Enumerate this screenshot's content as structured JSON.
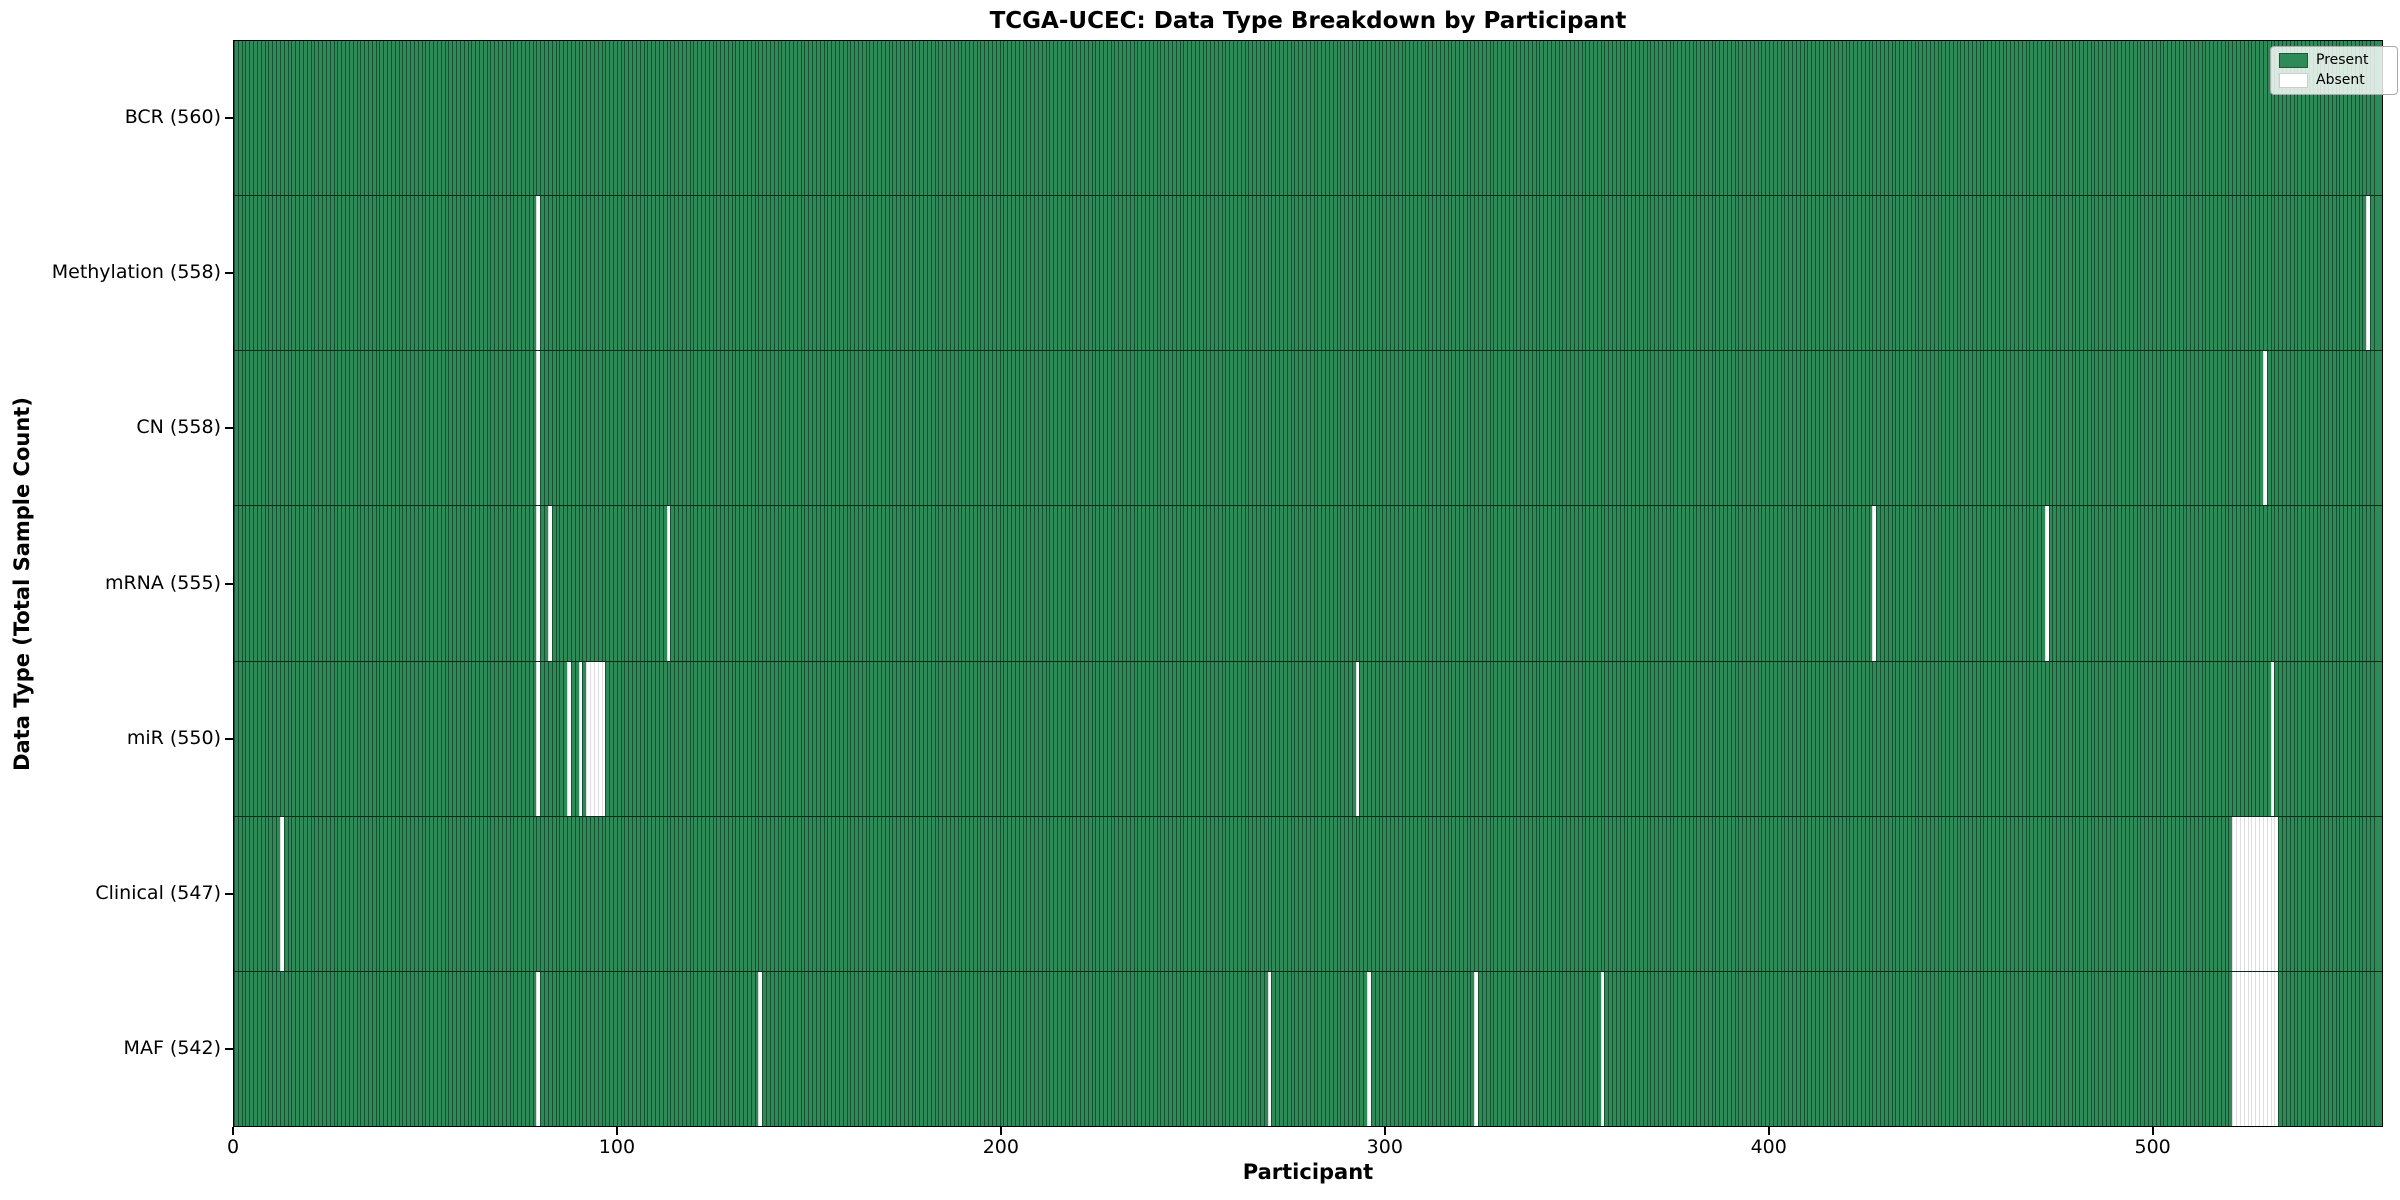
{
  "title": "TCGA-UCEC: Data Type Breakdown by Participant",
  "x_axis": {
    "label": "Participant"
  },
  "y_axis": {
    "label": "Data Type (Total Sample Count)"
  },
  "legend": {
    "present_label": "Present",
    "absent_label": "Absent"
  },
  "colors": {
    "present": "#2e8b57",
    "absent": "#ffffff",
    "cell_edge": "rgba(0,22,11,0.50)",
    "row_divider": "rgba(0,0,0,0.70)",
    "spine": "#000000"
  },
  "chart_data": {
    "type": "heatmap",
    "title": "TCGA-UCEC: Data Type Breakdown by Participant",
    "xlabel": "Participant",
    "ylabel": "Data Type (Total Sample Count)",
    "x_range": [
      0,
      560
    ],
    "x_ticks": [
      0,
      100,
      200,
      300,
      400,
      500
    ],
    "n_participants": 560,
    "grid": false,
    "legend_position": "upper right",
    "legend_entries": [
      {
        "label": "Present",
        "color": "#2e8b57"
      },
      {
        "label": "Absent",
        "color": "#ffffff"
      }
    ],
    "rows": [
      {
        "label": "BCR (560)",
        "data_type": "BCR",
        "total": 560,
        "absent_participants": []
      },
      {
        "label": "Methylation (558)",
        "data_type": "Methylation",
        "total": 558,
        "absent_participants": [
          79,
          557
        ]
      },
      {
        "label": "CN (558)",
        "data_type": "CN",
        "total": 558,
        "absent_participants": [
          79,
          530
        ]
      },
      {
        "label": "mRNA (555)",
        "data_type": "mRNA",
        "total": 555,
        "absent_participants": [
          79,
          82,
          113,
          428,
          473
        ]
      },
      {
        "label": "miR (550)",
        "data_type": "miR",
        "total": 550,
        "absent_participants": [
          79,
          87,
          90,
          92,
          93,
          94,
          95,
          96,
          293,
          532
        ]
      },
      {
        "label": "Clinical (547)",
        "data_type": "Clinical",
        "total": 547,
        "absent_participants": [
          12,
          522,
          523,
          524,
          525,
          526,
          527,
          528,
          529,
          530,
          531,
          532,
          533
        ]
      },
      {
        "label": "MAF (542)",
        "data_type": "MAF",
        "total": 542,
        "absent_participants": [
          79,
          137,
          270,
          296,
          324,
          357,
          522,
          523,
          524,
          525,
          526,
          527,
          528,
          529,
          530,
          531,
          532,
          533
        ]
      }
    ]
  }
}
